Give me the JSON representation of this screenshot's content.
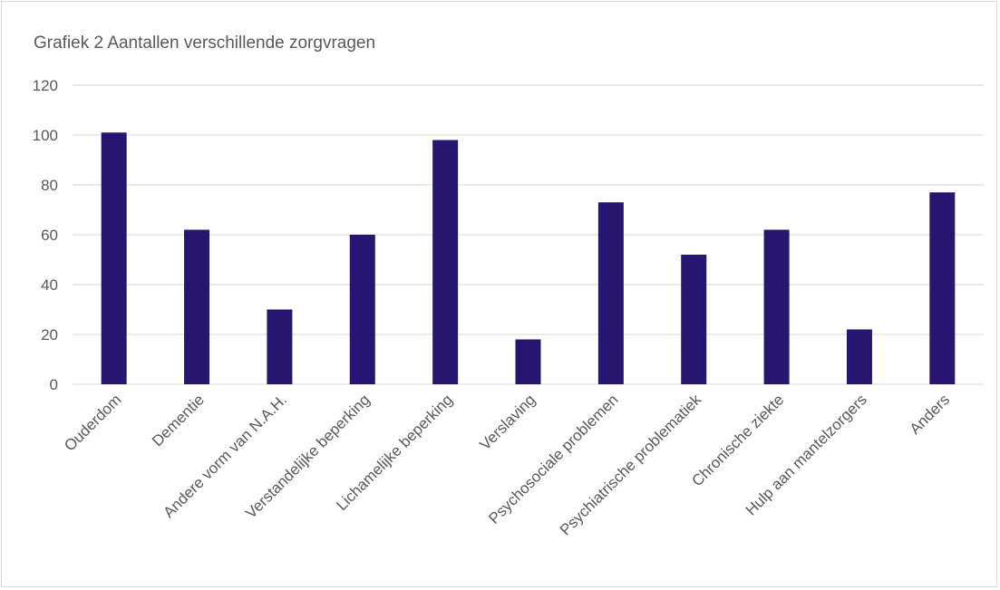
{
  "chart_data": {
    "type": "bar",
    "title": "Grafiek 2 Aantallen verschillende zorgvragen",
    "categories": [
      "Ouderdom",
      "Dementie",
      "Andere vorm van N.A.H.",
      "Verstandelijke beperking",
      "Lichamelijke beperking",
      "Verslaving",
      "Psychosociale problemen",
      "Psychiatrische problematiek",
      "Chronische ziekte",
      "Hulp aan mantelzorgers",
      "Anders"
    ],
    "values": [
      101,
      62,
      30,
      60,
      98,
      18,
      73,
      52,
      62,
      22,
      77
    ],
    "ylim": [
      0,
      120
    ],
    "yticks": [
      0,
      20,
      40,
      60,
      80,
      100,
      120
    ],
    "grid": true,
    "legend": "none",
    "bar_color": "#261672",
    "grid_color": "#d9d9d9",
    "text_color": "#595959"
  }
}
